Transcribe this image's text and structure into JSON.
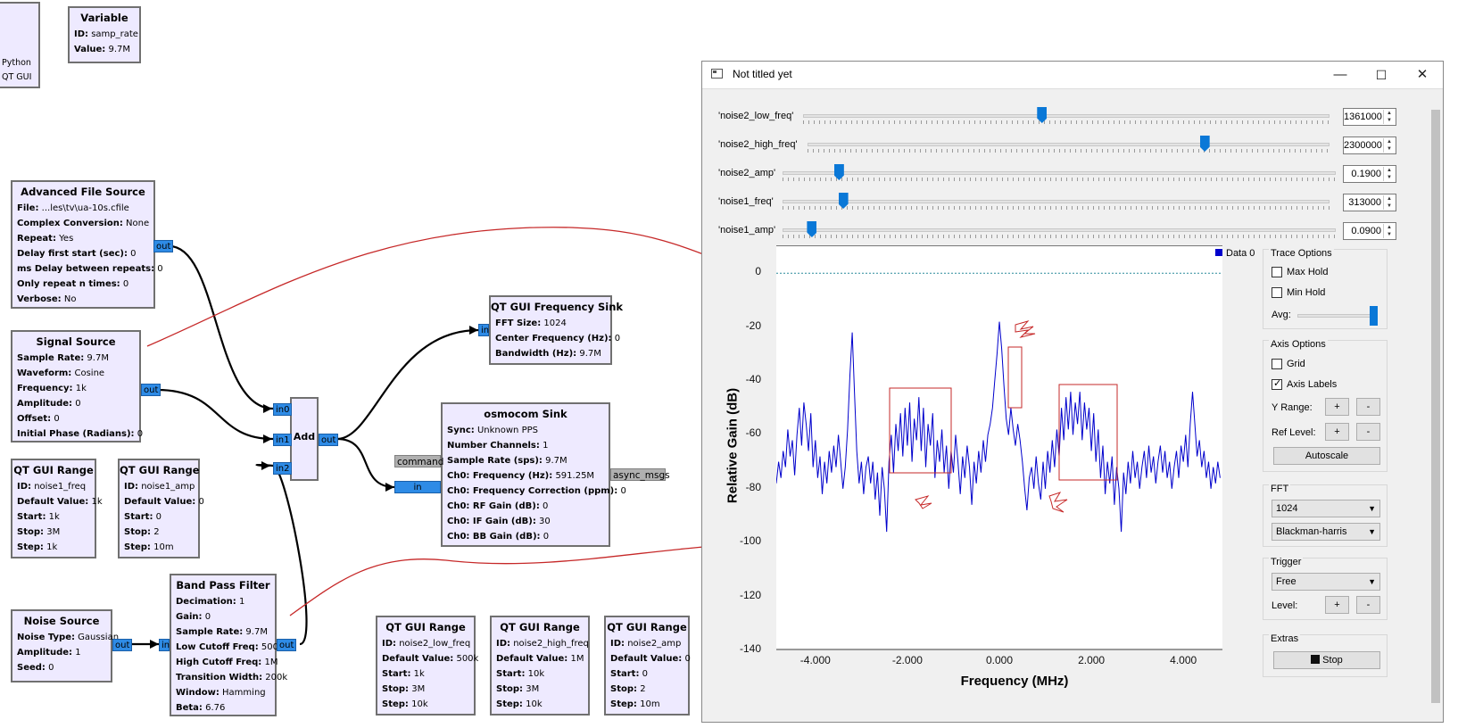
{
  "canvas": {
    "python_block": {
      "line1": "Python",
      "line2": "QT GUI"
    },
    "blocks": [
      {
        "title": "Variable",
        "params": [
          [
            "ID:",
            "samp_rate"
          ],
          [
            "Value:",
            "9.7M"
          ]
        ]
      },
      {
        "title": "Advanced File Source",
        "params": [
          [
            "File:",
            "...les\\tv\\ua-10s.cfile"
          ],
          [
            "Complex Conversion:",
            "None"
          ],
          [
            "Repeat:",
            "Yes"
          ],
          [
            "Delay first start (sec):",
            "0"
          ],
          [
            "ms Delay between repeats:",
            "0"
          ],
          [
            "Only repeat n times:",
            "0"
          ],
          [
            "Verbose:",
            "No"
          ]
        ]
      },
      {
        "title": "Signal Source",
        "params": [
          [
            "Sample Rate:",
            "9.7M"
          ],
          [
            "Waveform:",
            "Cosine"
          ],
          [
            "Frequency:",
            "1k"
          ],
          [
            "Amplitude:",
            "0"
          ],
          [
            "Offset:",
            "0"
          ],
          [
            "Initial Phase (Radians):",
            "0"
          ]
        ]
      },
      {
        "title": "QT GUI Range",
        "params": [
          [
            "ID:",
            "noise1_freq"
          ],
          [
            "Default Value:",
            "1k"
          ],
          [
            "Start:",
            "1k"
          ],
          [
            "Stop:",
            "3M"
          ],
          [
            "Step:",
            "1k"
          ]
        ]
      },
      {
        "title": "QT GUI Range",
        "params": [
          [
            "ID:",
            "noise1_amp"
          ],
          [
            "Default Value:",
            "0"
          ],
          [
            "Start:",
            "0"
          ],
          [
            "Stop:",
            "2"
          ],
          [
            "Step:",
            "10m"
          ]
        ]
      },
      {
        "title": "Noise Source",
        "params": [
          [
            "Noise Type:",
            "Gaussian"
          ],
          [
            "Amplitude:",
            "1"
          ],
          [
            "Seed:",
            "0"
          ]
        ]
      },
      {
        "title": "Band Pass Filter",
        "params": [
          [
            "Decimation:",
            "1"
          ],
          [
            "Gain:",
            "0"
          ],
          [
            "Sample Rate:",
            "9.7M"
          ],
          [
            "Low Cutoff Freq:",
            "500k"
          ],
          [
            "High Cutoff Freq:",
            "1M"
          ],
          [
            "Transition Width:",
            "200k"
          ],
          [
            "Window:",
            "Hamming"
          ],
          [
            "Beta:",
            "6.76"
          ]
        ]
      },
      {
        "title": "Add",
        "params": []
      },
      {
        "title": "QT GUI Frequency Sink",
        "params": [
          [
            "FFT Size:",
            "1024"
          ],
          [
            "Center Frequency (Hz):",
            "0"
          ],
          [
            "Bandwidth (Hz):",
            "9.7M"
          ]
        ]
      },
      {
        "title": "osmocom Sink",
        "params": [
          [
            "Sync:",
            "Unknown PPS"
          ],
          [
            "Number Channels:",
            "1"
          ],
          [
            "Sample Rate (sps):",
            "9.7M"
          ],
          [
            "Ch0: Frequency (Hz):",
            "591.25M"
          ],
          [
            "Ch0: Frequency Correction (ppm):",
            "0"
          ],
          [
            "Ch0: RF Gain (dB):",
            "0"
          ],
          [
            "Ch0: IF Gain (dB):",
            "30"
          ],
          [
            "Ch0: BB Gain (dB):",
            "0"
          ]
        ]
      },
      {
        "title": "QT GUI Range",
        "params": [
          [
            "ID:",
            "noise2_low_freq"
          ],
          [
            "Default Value:",
            "500k"
          ],
          [
            "Start:",
            "1k"
          ],
          [
            "Stop:",
            "3M"
          ],
          [
            "Step:",
            "10k"
          ]
        ]
      },
      {
        "title": "QT GUI Range",
        "params": [
          [
            "ID:",
            "noise2_high_freq"
          ],
          [
            "Default Value:",
            "1M"
          ],
          [
            "Start:",
            "10k"
          ],
          [
            "Stop:",
            "3M"
          ],
          [
            "Step:",
            "10k"
          ]
        ]
      },
      {
        "title": "QT GUI Range",
        "params": [
          [
            "ID:",
            "noise2_amp"
          ],
          [
            "Default Value:",
            "0"
          ],
          [
            "Start:",
            "0"
          ],
          [
            "Stop:",
            "2"
          ],
          [
            "Step:",
            "10m"
          ]
        ]
      }
    ],
    "ports": {
      "out": "out",
      "in": "in",
      "in0": "in0",
      "in1": "in1",
      "in2": "in2",
      "command": "command",
      "async_msgs": "async_msgs"
    }
  },
  "window": {
    "title": "Not titled yet",
    "controls": {
      "minimize": "—",
      "maximize": "☐",
      "close": "✕"
    },
    "sliders": [
      {
        "label": "'noise2_low_freq'",
        "value": "1361000",
        "level": 0.453
      },
      {
        "label": "'noise2_high_freq'",
        "value": "2300000",
        "level": 0.766
      },
      {
        "label": "'noise2_amp'",
        "value": "0.1900",
        "level": 0.095
      },
      {
        "label": "'noise1_freq'",
        "value": "313000",
        "level": 0.104
      },
      {
        "label": "'noise1_amp'",
        "value": "0.0900",
        "level": 0.045
      }
    ],
    "legend": "Data 0",
    "colors": {
      "trace": "#0000cc",
      "annotation": "#c62828",
      "slider": "#0a78d7"
    },
    "trace_options": {
      "title": "Trace Options",
      "max_hold": "Max Hold",
      "min_hold": "Min Hold",
      "avg": "Avg:",
      "avg_level": 1.0
    },
    "axis_options": {
      "title": "Axis Options",
      "grid": "Grid",
      "axis_labels": "Axis Labels",
      "y_range": "Y Range:",
      "ref_level": "Ref Level:",
      "plus": "+",
      "minus": "-",
      "autoscale": "Autoscale"
    },
    "fft": {
      "title": "FFT",
      "size": "1024",
      "window": "Blackman-harris"
    },
    "trigger": {
      "title": "Trigger",
      "mode": "Free",
      "level": "Level:"
    },
    "extras": {
      "title": "Extras",
      "stop": "Stop"
    }
  },
  "chart_data": {
    "type": "line",
    "xlabel": "Frequency (MHz)",
    "ylabel": "Relative Gain (dB)",
    "xlim": [
      -4.85,
      4.85
    ],
    "ylim": [
      -140,
      10
    ],
    "x_ticks": [
      "-4.000",
      "-2.000",
      "0.000",
      "2.000",
      "4.000"
    ],
    "x_tick_values": [
      -4,
      -2,
      0,
      2,
      4
    ],
    "y_ticks": [
      "0",
      "-20",
      "-40",
      "-60",
      "-80",
      "-100",
      "-120",
      "-140"
    ],
    "y_tick_values": [
      0,
      -20,
      -40,
      -60,
      -80,
      -100,
      -120,
      -140
    ],
    "series": [
      {
        "values": [
          [
            -4.85,
            -78
          ],
          [
            -4.8,
            -70
          ],
          [
            -4.75,
            -76
          ],
          [
            -4.7,
            -66
          ],
          [
            -4.65,
            -72
          ],
          [
            -4.6,
            -58
          ],
          [
            -4.55,
            -68
          ],
          [
            -4.5,
            -62
          ],
          [
            -4.45,
            -75
          ],
          [
            -4.4,
            -60
          ],
          [
            -4.35,
            -50
          ],
          [
            -4.3,
            -64
          ],
          [
            -4.25,
            -48
          ],
          [
            -4.2,
            -56
          ],
          [
            -4.15,
            -66
          ],
          [
            -4.1,
            -52
          ],
          [
            -4.05,
            -72
          ],
          [
            -4.0,
            -62
          ],
          [
            -3.95,
            -76
          ],
          [
            -3.9,
            -68
          ],
          [
            -3.85,
            -82
          ],
          [
            -3.8,
            -70
          ],
          [
            -3.75,
            -78
          ],
          [
            -3.7,
            -66
          ],
          [
            -3.65,
            -74
          ],
          [
            -3.6,
            -64
          ],
          [
            -3.55,
            -72
          ],
          [
            -3.5,
            -60
          ],
          [
            -3.45,
            -70
          ],
          [
            -3.4,
            -80
          ],
          [
            -3.35,
            -72
          ],
          [
            -3.3,
            -58
          ],
          [
            -3.25,
            -38
          ],
          [
            -3.2,
            -22
          ],
          [
            -3.15,
            -44
          ],
          [
            -3.1,
            -66
          ],
          [
            -3.05,
            -78
          ],
          [
            -3.0,
            -70
          ],
          [
            -2.95,
            -82
          ],
          [
            -2.9,
            -72
          ],
          [
            -2.85,
            -68
          ],
          [
            -2.8,
            -78
          ],
          [
            -2.75,
            -70
          ],
          [
            -2.7,
            -84
          ],
          [
            -2.65,
            -74
          ],
          [
            -2.6,
            -90
          ],
          [
            -2.55,
            -72
          ],
          [
            -2.5,
            -80
          ],
          [
            -2.45,
            -96
          ],
          [
            -2.4,
            -70
          ],
          [
            -2.35,
            -60
          ],
          [
            -2.3,
            -74
          ],
          [
            -2.25,
            -56
          ],
          [
            -2.2,
            -66
          ],
          [
            -2.15,
            -52
          ],
          [
            -2.1,
            -68
          ],
          [
            -2.05,
            -50
          ],
          [
            -2.0,
            -64
          ],
          [
            -1.95,
            -48
          ],
          [
            -1.9,
            -70
          ],
          [
            -1.85,
            -54
          ],
          [
            -1.8,
            -62
          ],
          [
            -1.75,
            -46
          ],
          [
            -1.7,
            -66
          ],
          [
            -1.65,
            -50
          ],
          [
            -1.6,
            -72
          ],
          [
            -1.55,
            -56
          ],
          [
            -1.5,
            -64
          ],
          [
            -1.45,
            -52
          ],
          [
            -1.4,
            -76
          ],
          [
            -1.35,
            -62
          ],
          [
            -1.3,
            -70
          ],
          [
            -1.25,
            -58
          ],
          [
            -1.2,
            -74
          ],
          [
            -1.15,
            -64
          ],
          [
            -1.1,
            -80
          ],
          [
            -1.05,
            -66
          ],
          [
            -1.0,
            -74
          ],
          [
            -0.95,
            -60
          ],
          [
            -0.9,
            -70
          ],
          [
            -0.85,
            -82
          ],
          [
            -0.8,
            -68
          ],
          [
            -0.75,
            -76
          ],
          [
            -0.7,
            -64
          ],
          [
            -0.65,
            -72
          ],
          [
            -0.6,
            -86
          ],
          [
            -0.55,
            -70
          ],
          [
            -0.5,
            -78
          ],
          [
            -0.45,
            -66
          ],
          [
            -0.4,
            -74
          ],
          [
            -0.35,
            -62
          ],
          [
            -0.3,
            -70
          ],
          [
            -0.25,
            -60
          ],
          [
            -0.2,
            -56
          ],
          [
            -0.15,
            -50
          ],
          [
            -0.1,
            -40
          ],
          [
            -0.05,
            -30
          ],
          [
            0.0,
            -18
          ],
          [
            0.05,
            -28
          ],
          [
            0.1,
            -42
          ],
          [
            0.15,
            -54
          ],
          [
            0.2,
            -60
          ],
          [
            0.25,
            -50
          ],
          [
            0.3,
            -58
          ],
          [
            0.35,
            -64
          ],
          [
            0.4,
            -56
          ],
          [
            0.45,
            -62
          ],
          [
            0.5,
            -70
          ],
          [
            0.55,
            -80
          ],
          [
            0.6,
            -88
          ],
          [
            0.65,
            -76
          ],
          [
            0.7,
            -72
          ],
          [
            0.75,
            -80
          ],
          [
            0.8,
            -68
          ],
          [
            0.85,
            -78
          ],
          [
            0.9,
            -84
          ],
          [
            0.95,
            -70
          ],
          [
            1.0,
            -80
          ],
          [
            1.05,
            -66
          ],
          [
            1.1,
            -74
          ],
          [
            1.15,
            -62
          ],
          [
            1.2,
            -72
          ],
          [
            1.25,
            -58
          ],
          [
            1.3,
            -68
          ],
          [
            1.35,
            -50
          ],
          [
            1.4,
            -62
          ],
          [
            1.45,
            -46
          ],
          [
            1.5,
            -58
          ],
          [
            1.55,
            -44
          ],
          [
            1.6,
            -60
          ],
          [
            1.65,
            -48
          ],
          [
            1.7,
            -56
          ],
          [
            1.75,
            -44
          ],
          [
            1.8,
            -62
          ],
          [
            1.85,
            -48
          ],
          [
            1.9,
            -58
          ],
          [
            1.95,
            -50
          ],
          [
            2.0,
            -66
          ],
          [
            2.05,
            -52
          ],
          [
            2.1,
            -70
          ],
          [
            2.15,
            -58
          ],
          [
            2.2,
            -76
          ],
          [
            2.25,
            -64
          ],
          [
            2.3,
            -82
          ],
          [
            2.35,
            -70
          ],
          [
            2.4,
            -78
          ],
          [
            2.45,
            -68
          ],
          [
            2.5,
            -86
          ],
          [
            2.55,
            -72
          ],
          [
            2.6,
            -80
          ],
          [
            2.65,
            -96
          ],
          [
            2.7,
            -74
          ],
          [
            2.75,
            -82
          ],
          [
            2.8,
            -70
          ],
          [
            2.85,
            -78
          ],
          [
            2.9,
            -66
          ],
          [
            2.95,
            -76
          ],
          [
            3.0,
            -70
          ],
          [
            3.05,
            -80
          ],
          [
            3.1,
            -72
          ],
          [
            3.15,
            -66
          ],
          [
            3.2,
            -76
          ],
          [
            3.25,
            -64
          ],
          [
            3.3,
            -74
          ],
          [
            3.35,
            -68
          ],
          [
            3.4,
            -78
          ],
          [
            3.45,
            -70
          ],
          [
            3.5,
            -64
          ],
          [
            3.55,
            -74
          ],
          [
            3.6,
            -66
          ],
          [
            3.65,
            -76
          ],
          [
            3.7,
            -70
          ],
          [
            3.75,
            -80
          ],
          [
            3.8,
            -72
          ],
          [
            3.85,
            -66
          ],
          [
            3.9,
            -76
          ],
          [
            3.95,
            -64
          ],
          [
            4.0,
            -70
          ],
          [
            4.05,
            -60
          ],
          [
            4.1,
            -72
          ],
          [
            4.15,
            -56
          ],
          [
            4.2,
            -44
          ],
          [
            4.25,
            -56
          ],
          [
            4.3,
            -68
          ],
          [
            4.35,
            -62
          ],
          [
            4.4,
            -72
          ],
          [
            4.45,
            -66
          ],
          [
            4.5,
            -76
          ],
          [
            4.55,
            -70
          ],
          [
            4.6,
            -80
          ],
          [
            4.65,
            -72
          ],
          [
            4.7,
            -78
          ],
          [
            4.75,
            -70
          ],
          [
            4.8,
            -76
          ]
        ]
      },
      {
        "values": [
          [
            -4.85,
            0
          ],
          [
            4.85,
            0
          ]
        ]
      }
    ]
  }
}
